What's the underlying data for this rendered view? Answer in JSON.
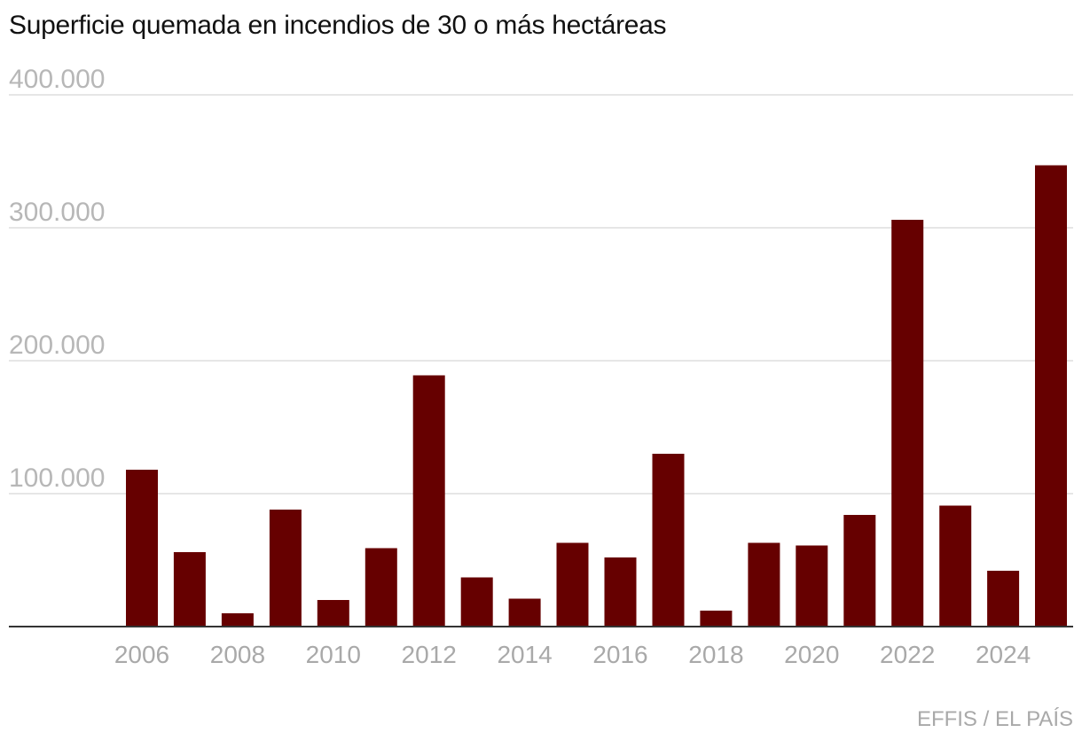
{
  "chart_data": {
    "type": "bar",
    "title": "Superficie quemada en incendios de 30 o más hectáreas",
    "source": "EFFIS / EL PAÍS",
    "xlabel": "",
    "ylabel": "",
    "ylim": [
      0,
      400000
    ],
    "yticks": [
      100000,
      200000,
      300000,
      400000
    ],
    "ytick_labels": [
      "100.000",
      "200.000",
      "300.000",
      "400.000"
    ],
    "xtick_labels": [
      "2006",
      "2008",
      "2010",
      "2012",
      "2014",
      "2016",
      "2018",
      "2020",
      "2022",
      "2024"
    ],
    "categories": [
      "2006",
      "2007",
      "2008",
      "2009",
      "2010",
      "2011",
      "2012",
      "2013",
      "2014",
      "2015",
      "2016",
      "2017",
      "2018",
      "2019",
      "2020",
      "2021",
      "2022",
      "2023",
      "2024",
      "2025"
    ],
    "values": [
      118000,
      56000,
      10000,
      88000,
      20000,
      59000,
      189000,
      37000,
      21000,
      63000,
      52000,
      130000,
      12000,
      63000,
      61000,
      84000,
      306000,
      91000,
      42000,
      347000
    ],
    "bar_color": "#660000",
    "grid": true
  }
}
